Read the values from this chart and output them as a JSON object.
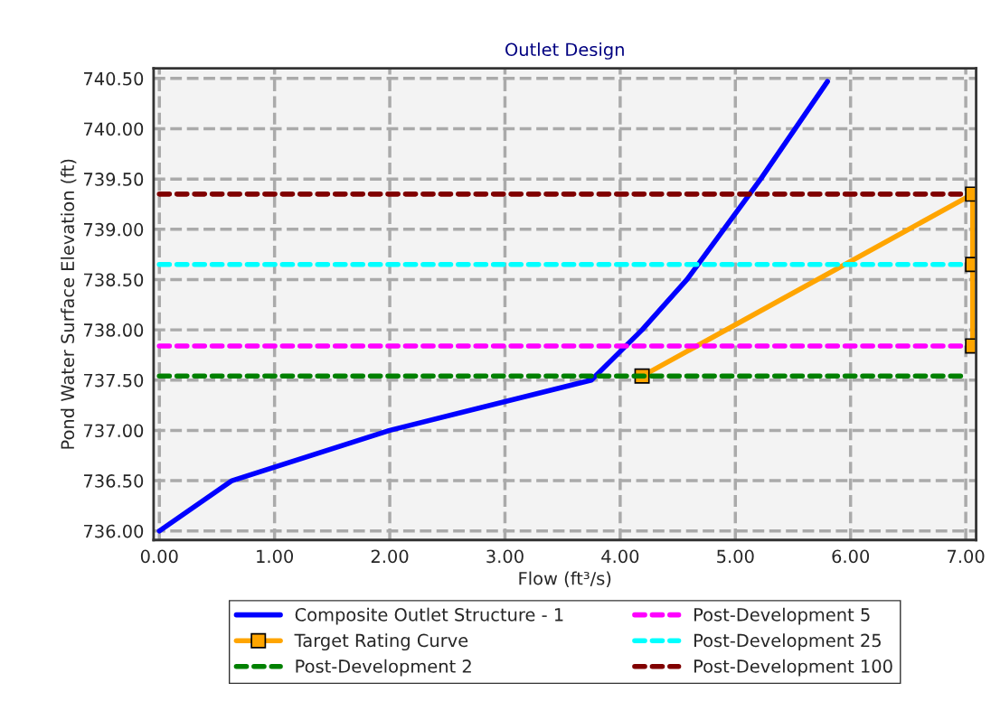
{
  "chart_data": {
    "type": "line",
    "title": "Outlet Design",
    "xlabel": "Flow (ft³/s)",
    "ylabel": "Pond Water Surface Elevation (ft)",
    "xlim": [
      -0.05,
      7.09
    ],
    "ylim": [
      735.91,
      740.6
    ],
    "xticks": [
      {
        "value": 0,
        "label": "0.00"
      },
      {
        "value": 1,
        "label": "1.00"
      },
      {
        "value": 2,
        "label": "2.00"
      },
      {
        "value": 3,
        "label": "3.00"
      },
      {
        "value": 4,
        "label": "4.00"
      },
      {
        "value": 5,
        "label": "5.00"
      },
      {
        "value": 6,
        "label": "6.00"
      },
      {
        "value": 7,
        "label": "7.00"
      }
    ],
    "yticks": [
      {
        "value": 736,
        "label": "736.00"
      },
      {
        "value": 736.5,
        "label": "736.50"
      },
      {
        "value": 737,
        "label": "737.00"
      },
      {
        "value": 737.5,
        "label": "737.50"
      },
      {
        "value": 738,
        "label": "738.00"
      },
      {
        "value": 738.5,
        "label": "738.50"
      },
      {
        "value": 739,
        "label": "739.00"
      },
      {
        "value": 739.5,
        "label": "739.50"
      },
      {
        "value": 740,
        "label": "740.00"
      },
      {
        "value": 740.5,
        "label": "740.50"
      }
    ],
    "grid": true,
    "legend": "bottom",
    "series": [
      {
        "name": "Composite Outlet Structure - 1",
        "color": "#0000ff",
        "x": [
          0,
          0.63,
          2.0,
          3.75,
          4.19,
          4.58,
          5.22,
          5.8
        ],
        "values": [
          736.0,
          736.5,
          737.0,
          737.5,
          738.0,
          738.5,
          739.5,
          740.47
        ],
        "line_style": "solid",
        "marker": "none"
      },
      {
        "name": "Target Rating Curve",
        "color": "#ffa500",
        "x": [
          4.19,
          7.06,
          7.06,
          7.06
        ],
        "values": [
          737.54,
          739.35,
          738.65,
          737.84
        ],
        "line_style": "solid",
        "marker": "square"
      },
      {
        "name": "Post-Development 2",
        "color": "#008000",
        "x": [
          0,
          7.0
        ],
        "values": [
          737.54,
          737.54
        ],
        "line_style": "dashed",
        "marker": "none"
      },
      {
        "name": "Post-Development 5",
        "color": "#ff00ff",
        "x": [
          0,
          7.0
        ],
        "values": [
          737.84,
          737.84
        ],
        "line_style": "dashed",
        "marker": "none"
      },
      {
        "name": "Post-Development 25",
        "color": "#00ffff",
        "x": [
          0,
          7.0
        ],
        "values": [
          738.65,
          738.65
        ],
        "line_style": "dashed",
        "marker": "none"
      },
      {
        "name": "Post-Development 100",
        "color": "#800000",
        "x": [
          0,
          7.0
        ],
        "values": [
          739.35,
          739.35
        ],
        "line_style": "dashed",
        "marker": "none"
      }
    ]
  }
}
